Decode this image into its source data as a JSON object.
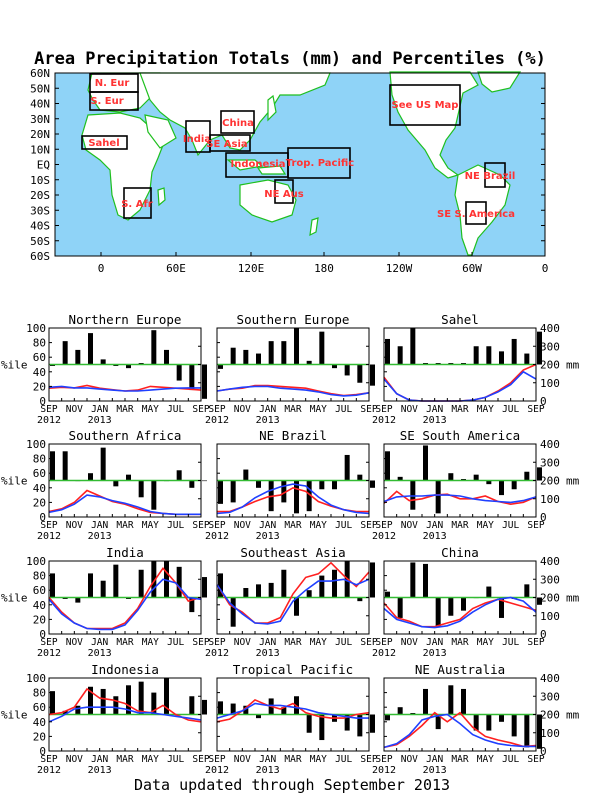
{
  "title": "Area Precipitation Totals (mm) and Percentiles (%)",
  "footer": "Data updated through September 2013",
  "map": {
    "lat_labels": [
      "60N",
      "50N",
      "40N",
      "30N",
      "20N",
      "10N",
      "EQ",
      "10S",
      "20S",
      "30S",
      "40S",
      "50S",
      "60S"
    ],
    "lon_labels": [
      "0",
      "60E",
      "120E",
      "180",
      "120W",
      "60W",
      "0"
    ],
    "colors": {
      "ocean": "#8fd3f7",
      "land": "#ffffff",
      "coast": "#1fbf1f",
      "box": "#000000",
      "label": "#ff3333"
    },
    "regions": [
      {
        "label": "N. Eur"
      },
      {
        "label": "S. Eur"
      },
      {
        "label": "Sahel"
      },
      {
        "label": "India"
      },
      {
        "label": "China"
      },
      {
        "label": "SE Asia"
      },
      {
        "label": "Indonesia"
      },
      {
        "label": "Trop. Pacific"
      },
      {
        "label": "NE Aus"
      },
      {
        "label": "S. Afr"
      },
      {
        "label": "See US Map"
      },
      {
        "label": "NE Brazil"
      },
      {
        "label": "SE S. America"
      }
    ]
  },
  "axis_text": {
    "pct_ticks": [
      "0",
      "20",
      "40",
      "60",
      "80",
      "100"
    ],
    "mm_ticks": [
      "0",
      "100",
      "200",
      "300",
      "400"
    ],
    "pct_unit": "%ile",
    "mm_unit": "mm",
    "month_ticks": [
      "SEP",
      "NOV",
      "JAN",
      "MAR",
      "MAY",
      "JUL",
      "SEP"
    ],
    "year_ticks": [
      "2012",
      "2013"
    ]
  },
  "chart_data": [
    {
      "type": "bar",
      "title": "Northern Europe",
      "months": 13,
      "ylim_pct": [
        0,
        100
      ],
      "ylim_mm": [
        0,
        400
      ],
      "baseline_pct": 50,
      "percentiles": [
        48,
        82,
        70,
        93,
        57,
        48,
        45,
        52,
        97,
        70,
        28,
        15,
        3
      ],
      "series": [
        {
          "color": "#ff2020",
          "values_mm": [
            70,
            75,
            72,
            85,
            70,
            62,
            55,
            60,
            80,
            75,
            70,
            65,
            60
          ]
        },
        {
          "color": "#2040ff",
          "values_mm": [
            75,
            80,
            72,
            72,
            65,
            60,
            55,
            55,
            60,
            65,
            70,
            72,
            72
          ]
        }
      ]
    },
    {
      "type": "bar",
      "title": "Southern Europe",
      "months": 13,
      "ylim_pct": [
        0,
        100
      ],
      "ylim_mm": [
        0,
        400
      ],
      "baseline_pct": 50,
      "percentiles": [
        44,
        73,
        70,
        65,
        82,
        82,
        100,
        55,
        95,
        45,
        35,
        25,
        21
      ],
      "series": [
        {
          "color": "#ff2020",
          "values_mm": [
            55,
            65,
            70,
            85,
            85,
            80,
            75,
            70,
            55,
            40,
            30,
            35,
            45
          ]
        },
        {
          "color": "#2040ff",
          "values_mm": [
            55,
            65,
            75,
            80,
            80,
            70,
            65,
            60,
            50,
            35,
            28,
            32,
            45
          ]
        }
      ]
    },
    {
      "type": "bar",
      "title": "Sahel",
      "months": 13,
      "ylim_pct": [
        0,
        100
      ],
      "ylim_mm": [
        0,
        400
      ],
      "baseline_pct": 50,
      "percentiles": [
        85,
        75,
        100,
        52,
        52,
        52,
        52,
        75,
        75,
        68,
        85,
        65,
        95
      ],
      "series": [
        {
          "color": "#ff2020",
          "values_mm": [
            130,
            40,
            5,
            0,
            0,
            0,
            0,
            5,
            20,
            55,
            100,
            170,
            200
          ]
        },
        {
          "color": "#2040ff",
          "values_mm": [
            120,
            40,
            5,
            0,
            0,
            0,
            0,
            5,
            20,
            50,
            90,
            160,
            120
          ]
        }
      ]
    },
    {
      "type": "bar",
      "title": "Southern Africa",
      "months": 13,
      "ylim_pct": [
        0,
        100
      ],
      "ylim_mm": [
        0,
        400
      ],
      "baseline_pct": 50,
      "percentiles": [
        90,
        90,
        50,
        60,
        95,
        42,
        58,
        27,
        10,
        50,
        64,
        40,
        50
      ],
      "series": [
        {
          "color": "#ff2020",
          "values_mm": [
            30,
            45,
            80,
            145,
            115,
            85,
            70,
            45,
            25,
            20,
            15,
            15,
            15
          ]
        },
        {
          "color": "#2040ff",
          "values_mm": [
            25,
            40,
            70,
            120,
            110,
            90,
            75,
            55,
            30,
            20,
            15,
            15,
            15
          ]
        }
      ]
    },
    {
      "type": "bar",
      "title": "NE Brazil",
      "months": 13,
      "ylim_pct": [
        0,
        100
      ],
      "ylim_mm": [
        0,
        400
      ],
      "baseline_pct": 50,
      "percentiles": [
        18,
        20,
        65,
        40,
        8,
        20,
        5,
        8,
        38,
        38,
        85,
        58,
        40
      ],
      "series": [
        {
          "color": "#ff2020",
          "values_mm": [
            30,
            30,
            55,
            85,
            110,
            120,
            160,
            140,
            85,
            60,
            40,
            30,
            30
          ]
        },
        {
          "color": "#2040ff",
          "values_mm": [
            20,
            25,
            55,
            105,
            140,
            165,
            180,
            170,
            110,
            65,
            40,
            25,
            20
          ]
        }
      ]
    },
    {
      "type": "bar",
      "title": "SE South America",
      "months": 13,
      "ylim_pct": [
        0,
        100
      ],
      "ylim_mm": [
        0,
        400
      ],
      "baseline_pct": 50,
      "percentiles": [
        90,
        55,
        10,
        98,
        5,
        60,
        52,
        58,
        45,
        30,
        38,
        62,
        68
      ],
      "series": [
        {
          "color": "#ff2020",
          "values_mm": [
            75,
            140,
            90,
            100,
            120,
            125,
            100,
            100,
            115,
            85,
            70,
            80,
            110
          ]
        },
        {
          "color": "#2040ff",
          "values_mm": [
            85,
            110,
            115,
            115,
            120,
            120,
            115,
            100,
            90,
            85,
            80,
            90,
            110
          ]
        }
      ]
    },
    {
      "type": "bar",
      "title": "India",
      "months": 13,
      "ylim_pct": [
        0,
        100
      ],
      "ylim_mm": [
        0,
        400
      ],
      "baseline_pct": 50,
      "percentiles": [
        83,
        48,
        43,
        83,
        73,
        95,
        48,
        88,
        100,
        100,
        92,
        30,
        78
      ],
      "series": [
        {
          "color": "#ff2020",
          "values_mm": [
            200,
            120,
            60,
            30,
            30,
            30,
            60,
            140,
            260,
            360,
            280,
            180,
            200
          ]
        },
        {
          "color": "#2040ff",
          "values_mm": [
            190,
            110,
            60,
            30,
            25,
            25,
            50,
            130,
            230,
            300,
            280,
            200,
            190
          ]
        }
      ]
    },
    {
      "type": "bar",
      "title": "Southeast Asia",
      "months": 13,
      "ylim_pct": [
        0,
        100
      ],
      "ylim_mm": [
        0,
        400
      ],
      "baseline_pct": 50,
      "percentiles": [
        83,
        10,
        63,
        68,
        70,
        88,
        25,
        60,
        80,
        88,
        100,
        45,
        98
      ],
      "series": [
        {
          "color": "#ff2020",
          "values_mm": [
            270,
            160,
            120,
            60,
            60,
            90,
            220,
            310,
            330,
            390,
            320,
            260,
            340
          ]
        },
        {
          "color": "#2040ff",
          "values_mm": [
            270,
            170,
            110,
            60,
            55,
            70,
            180,
            240,
            290,
            290,
            300,
            270,
            300
          ]
        }
      ]
    },
    {
      "type": "bar",
      "title": "China",
      "months": 13,
      "ylim_pct": [
        0,
        100
      ],
      "ylim_mm": [
        0,
        400
      ],
      "baseline_pct": 50,
      "percentiles": [
        58,
        22,
        98,
        96,
        10,
        25,
        32,
        50,
        65,
        22,
        48,
        68,
        40
      ],
      "series": [
        {
          "color": "#ff2020",
          "values_mm": [
            170,
            90,
            70,
            40,
            40,
            60,
            80,
            140,
            170,
            190,
            170,
            150,
            130
          ]
        },
        {
          "color": "#2040ff",
          "values_mm": [
            140,
            80,
            60,
            40,
            35,
            45,
            70,
            120,
            160,
            190,
            200,
            180,
            120
          ]
        }
      ]
    },
    {
      "type": "bar",
      "title": "Indonesia",
      "months": 13,
      "ylim_pct": [
        0,
        100
      ],
      "ylim_mm": [
        0,
        400
      ],
      "baseline_pct": 50,
      "percentiles": [
        82,
        55,
        62,
        88,
        85,
        75,
        90,
        95,
        80,
        100,
        50,
        75,
        70
      ],
      "series": [
        {
          "color": "#ff2020",
          "values_mm": [
            200,
            210,
            240,
            340,
            290,
            280,
            260,
            220,
            210,
            250,
            200,
            170,
            160
          ]
        },
        {
          "color": "#2040ff",
          "values_mm": [
            160,
            190,
            230,
            240,
            240,
            240,
            230,
            210,
            210,
            200,
            190,
            180,
            170
          ]
        }
      ]
    },
    {
      "type": "bar",
      "title": "Tropical Pacific",
      "months": 13,
      "ylim_pct": [
        0,
        100
      ],
      "ylim_mm": [
        0,
        400
      ],
      "baseline_pct": 50,
      "percentiles": [
        68,
        65,
        62,
        45,
        72,
        60,
        75,
        25,
        15,
        40,
        28,
        20,
        25
      ],
      "series": [
        {
          "color": "#ff2020",
          "values_mm": [
            160,
            175,
            220,
            280,
            250,
            230,
            260,
            210,
            190,
            180,
            180,
            200,
            210
          ]
        },
        {
          "color": "#2040ff",
          "values_mm": [
            180,
            200,
            220,
            260,
            250,
            250,
            240,
            230,
            210,
            200,
            190,
            180,
            180
          ]
        }
      ]
    },
    {
      "type": "bar",
      "title": "NE Australia",
      "months": 13,
      "ylim_pct": [
        0,
        100
      ],
      "ylim_mm": [
        0,
        400
      ],
      "baseline_pct": 50,
      "percentiles": [
        42,
        60,
        52,
        85,
        30,
        90,
        85,
        28,
        28,
        40,
        20,
        5,
        3
      ],
      "series": [
        {
          "color": "#ff2020",
          "values_mm": [
            20,
            35,
            80,
            140,
            210,
            160,
            210,
            130,
            80,
            60,
            45,
            25,
            30
          ]
        },
        {
          "color": "#2040ff",
          "values_mm": [
            20,
            40,
            90,
            170,
            190,
            200,
            150,
            90,
            60,
            40,
            30,
            25,
            25
          ]
        }
      ]
    }
  ]
}
